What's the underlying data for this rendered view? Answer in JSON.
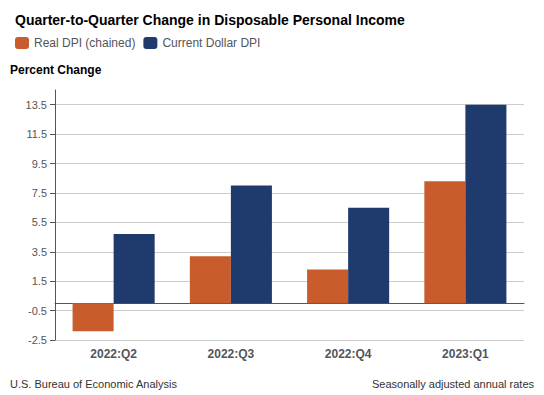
{
  "chart_data": {
    "type": "bar",
    "title": "Quarter-to-Quarter Change in Disposable Personal Income",
    "ylabel": "Percent Change",
    "categories": [
      "2022:Q2",
      "2022:Q3",
      "2022:Q4",
      "2023:Q1"
    ],
    "series": [
      {
        "name": "Real DPI (chained)",
        "color": "#C85C2D",
        "values": [
          -1.9,
          3.2,
          2.3,
          8.3
        ]
      },
      {
        "name": "Current Dollar DPI",
        "color": "#1F3B6E",
        "values": [
          4.7,
          8.0,
          6.5,
          13.5
        ]
      }
    ],
    "ylim": [
      -2.5,
      14.5
    ],
    "yticks": [
      -2.5,
      -0.5,
      1.5,
      3.5,
      5.5,
      7.5,
      9.5,
      11.5,
      13.5
    ],
    "grid": true,
    "legend": "upper left",
    "annotations": [
      "U.S. Bureau of Economic Analysis",
      "Seasonally adjusted annual rates"
    ]
  }
}
